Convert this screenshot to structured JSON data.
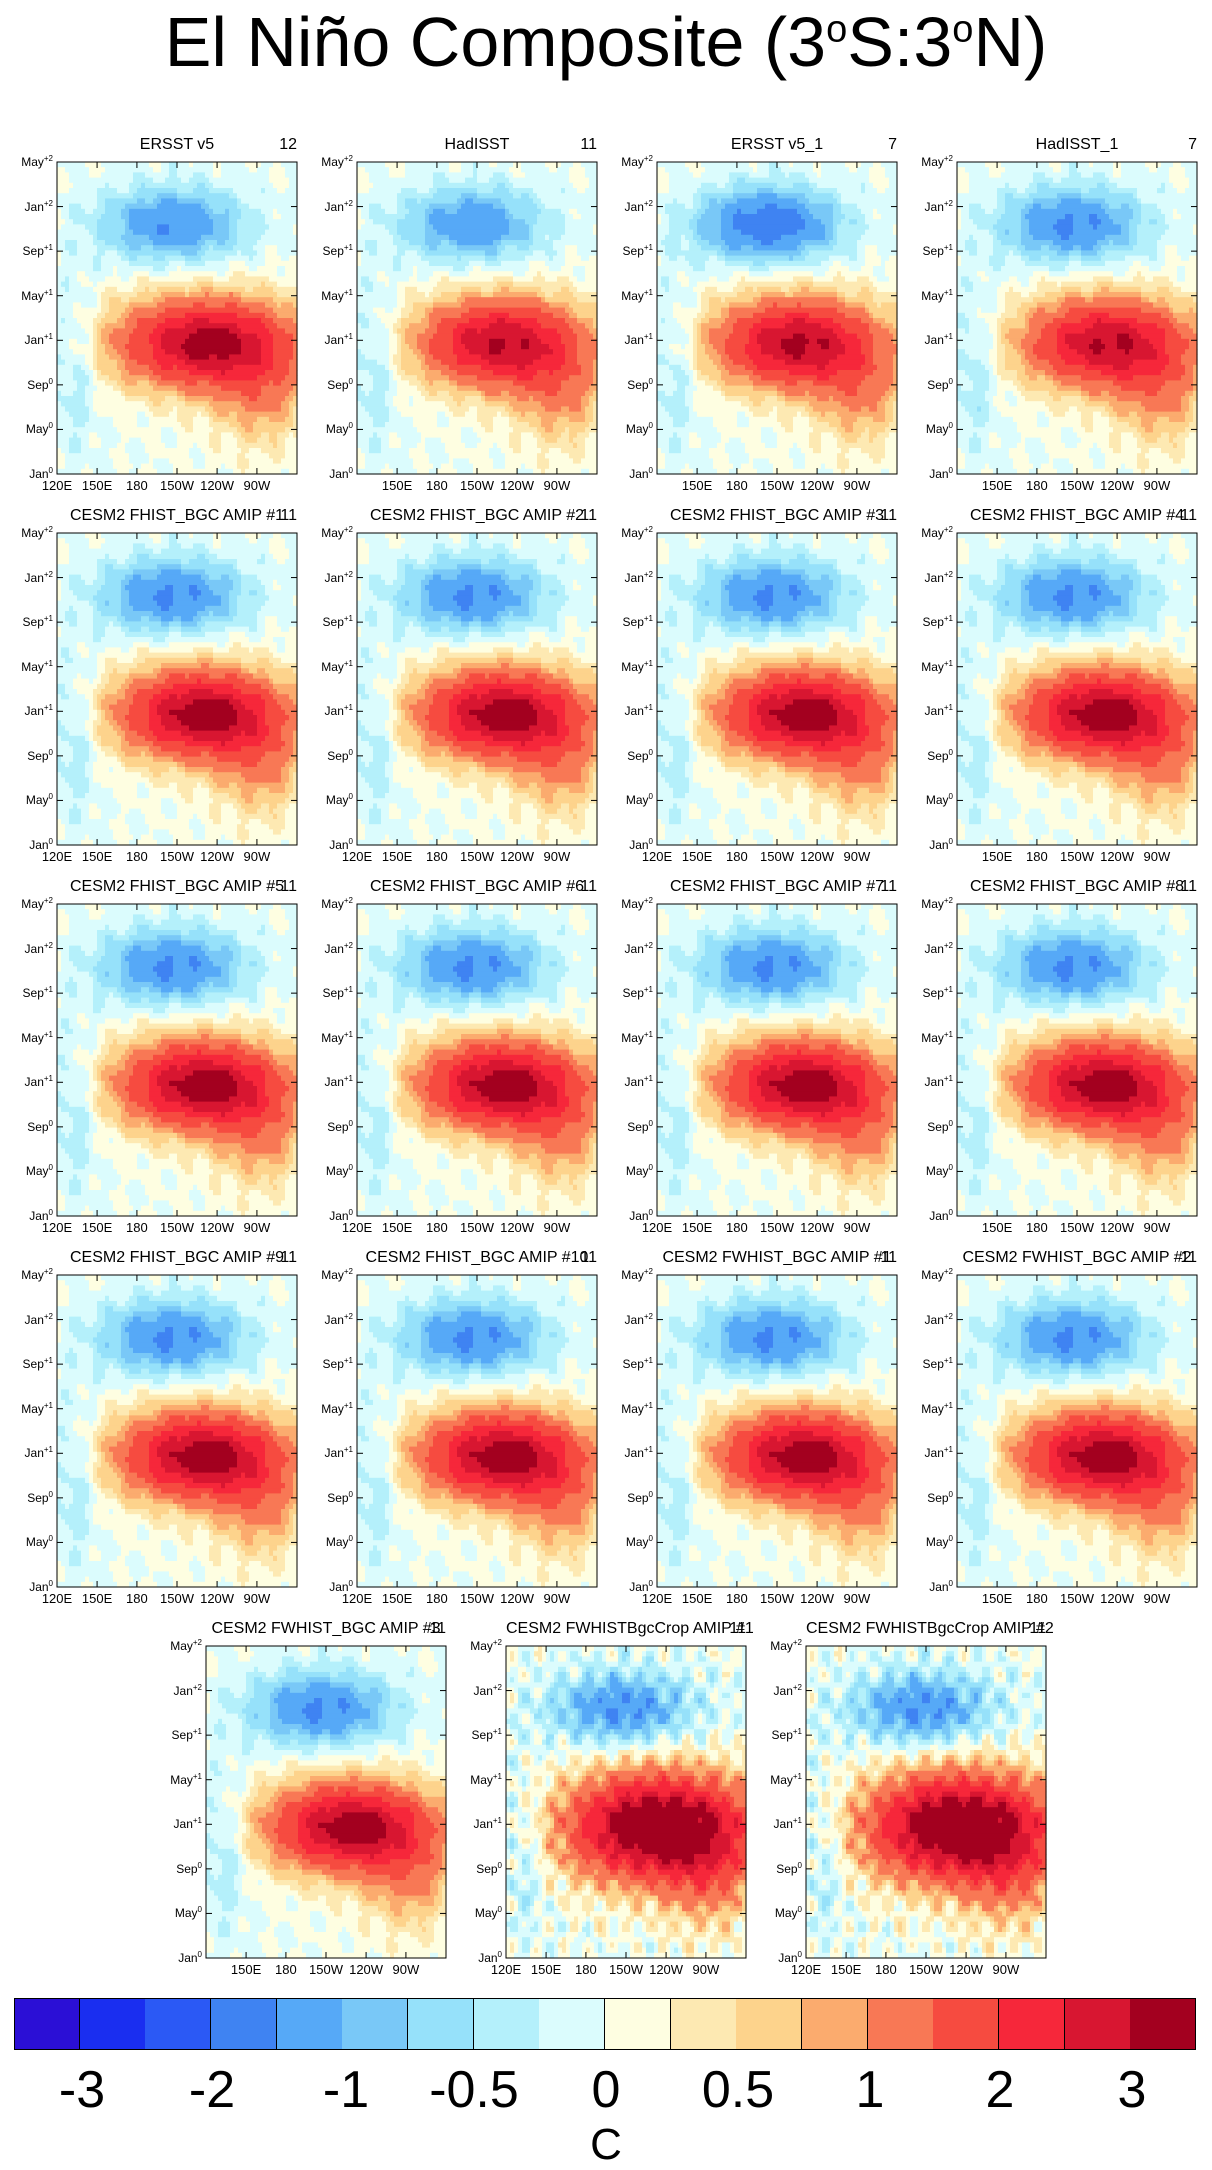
{
  "title": {
    "text": "El Niño Composite (3",
    "deg": "o",
    "s": "S:3",
    "deg2": "o",
    "n": "N)"
  },
  "colors": {
    "levels": [
      "#2b0fd6",
      "#1a2ef0",
      "#2b59f5",
      "#3f83f2",
      "#56a9f7",
      "#79c8f7",
      "#96e1fa",
      "#b4f0fb",
      "#dbfcfd",
      "#fefee1",
      "#fde9b2",
      "#fdd38c",
      "#fbab6e",
      "#f87855",
      "#f64b40",
      "#f6273a",
      "#d81631",
      "#a3001f"
    ],
    "contour": "#777777"
  },
  "chart_data": {
    "type": "heatmap",
    "y_ticks": [
      {
        "m": "Jan",
        "e": "0"
      },
      {
        "m": "May",
        "e": "0"
      },
      {
        "m": "Sep",
        "e": "0"
      },
      {
        "m": "Jan",
        "e": "+1"
      },
      {
        "m": "May",
        "e": "+1"
      },
      {
        "m": "Sep",
        "e": "+1"
      },
      {
        "m": "Jan",
        "e": "+2"
      },
      {
        "m": "May",
        "e": "+2"
      }
    ],
    "x_ticks_full": [
      "120E",
      "150E",
      "180",
      "150W",
      "120W",
      "90W"
    ],
    "x_ticks_short": [
      "150E",
      "180",
      "150W",
      "120W",
      "90W"
    ],
    "colorbar": {
      "labels": [
        "-3",
        "-2",
        "-1",
        "-0.5",
        "0",
        "0.5",
        "1",
        "2",
        "3"
      ],
      "unit": "C"
    },
    "panels": [
      {
        "title": "ERSST v5",
        "count": "12",
        "style": "obs1"
      },
      {
        "title": "HadISST",
        "count": "11",
        "style": "obs2"
      },
      {
        "title": "ERSST v5_1",
        "count": "7",
        "style": "obs3"
      },
      {
        "title": "HadISST_1",
        "count": "7",
        "style": "obs4"
      },
      {
        "title": "CESM2 FHIST_BGC AMIP #1",
        "count": "11",
        "style": "model"
      },
      {
        "title": "CESM2 FHIST_BGC AMIP #2",
        "count": "11",
        "style": "model"
      },
      {
        "title": "CESM2 FHIST_BGC AMIP #3",
        "count": "11",
        "style": "model"
      },
      {
        "title": "CESM2 FHIST_BGC AMIP #4",
        "count": "11",
        "style": "model"
      },
      {
        "title": "CESM2 FHIST_BGC AMIP #5",
        "count": "11",
        "style": "model"
      },
      {
        "title": "CESM2 FHIST_BGC AMIP #6",
        "count": "11",
        "style": "model"
      },
      {
        "title": "CESM2 FHIST_BGC AMIP #7",
        "count": "11",
        "style": "model"
      },
      {
        "title": "CESM2 FHIST_BGC AMIP #8",
        "count": "11",
        "style": "model"
      },
      {
        "title": "CESM2 FHIST_BGC AMIP #9",
        "count": "11",
        "style": "model"
      },
      {
        "title": "CESM2 FHIST_BGC AMIP #10",
        "count": "11",
        "style": "model"
      },
      {
        "title": "CESM2 FWHIST_BGC AMIP #1",
        "count": "11",
        "style": "model"
      },
      {
        "title": "CESM2 FWHIST_BGC AMIP #2",
        "count": "11",
        "style": "model"
      },
      {
        "title": "CESM2 FWHIST_BGC AMIP #3",
        "count": "11",
        "style": "model"
      },
      {
        "title": "CESM2 FWHISTBgcCrop AMIP #1",
        "count": "11",
        "style": "crop"
      },
      {
        "title": "CESM2 FWHISTBgcCrop AMIP #2",
        "count": "11",
        "style": "crop"
      }
    ]
  }
}
